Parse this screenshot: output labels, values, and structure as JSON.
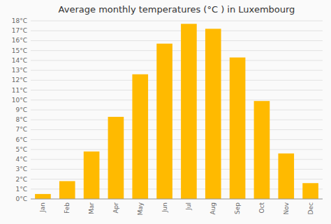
{
  "chart_data": {
    "type": "bar",
    "title": "Average monthly temperatures (°C ) in Luxembourg",
    "categories": [
      "Jan",
      "Feb",
      "Mar",
      "Apr",
      "May",
      "Jun",
      "Jul",
      "Aug",
      "Sep",
      "Oct",
      "Nov",
      "Dec"
    ],
    "values": [
      0.5,
      1.8,
      4.8,
      8.3,
      12.6,
      15.7,
      17.7,
      17.2,
      14.3,
      9.9,
      4.6,
      1.6
    ],
    "color": "#FFBA00",
    "ylim": [
      0,
      18
    ],
    "yticks": [
      {
        "value": 0,
        "label": "0°C"
      },
      {
        "value": 1,
        "label": "1°C"
      },
      {
        "value": 2,
        "label": "2°C"
      },
      {
        "value": 3,
        "label": "3°C"
      },
      {
        "value": 4,
        "label": "4°C"
      },
      {
        "value": 5,
        "label": "5°C"
      },
      {
        "value": 6,
        "label": "6°C"
      },
      {
        "value": 7,
        "label": "7°C"
      },
      {
        "value": 8,
        "label": "8°C"
      },
      {
        "value": 9,
        "label": "9°C"
      },
      {
        "value": 10,
        "label": "10°C"
      },
      {
        "value": 11,
        "label": "11°C"
      },
      {
        "value": 12,
        "label": "12°C"
      },
      {
        "value": 13,
        "label": "13°C"
      },
      {
        "value": 14,
        "label": "14°C"
      },
      {
        "value": 15,
        "label": "15°C"
      },
      {
        "value": 16,
        "label": "16°C"
      },
      {
        "value": 17,
        "label": "17°C"
      },
      {
        "value": 18,
        "label": "18°C"
      }
    ],
    "grid": true
  }
}
